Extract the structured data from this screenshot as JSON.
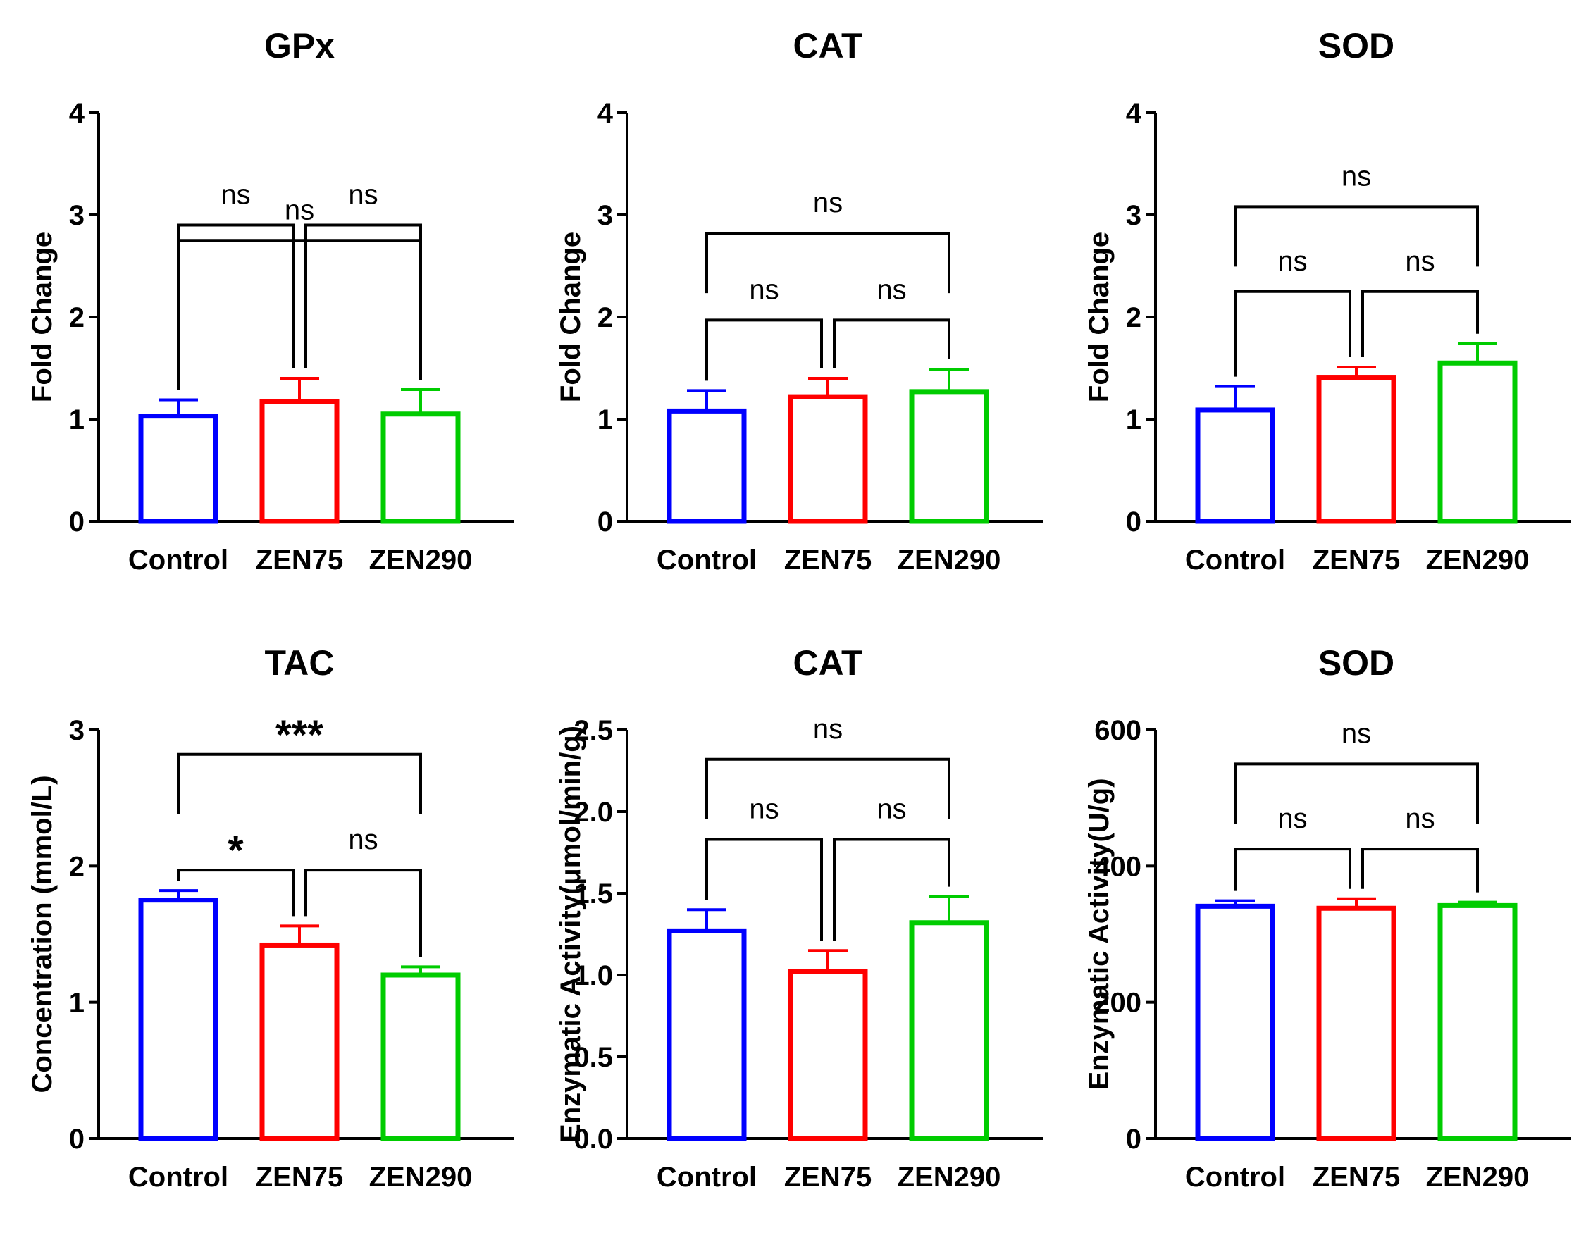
{
  "figure_colors": {
    "Control": "#0000ff",
    "ZEN75": "#ff0000",
    "ZEN290": "#00cc00"
  },
  "chart_data": [
    {
      "type": "bar",
      "title": "GPx",
      "ylabel": "Fold Change",
      "xlabel": "",
      "ylim": [
        0,
        4
      ],
      "yticks": [
        0,
        1,
        2,
        3,
        4
      ],
      "tick_labels": [
        "0",
        "1",
        "2",
        "3",
        "4"
      ],
      "categories": [
        "Control",
        "ZEN75",
        "ZEN290"
      ],
      "values": [
        1.03,
        1.17,
        1.05
      ],
      "errors": [
        0.16,
        0.23,
        0.24
      ],
      "comparisons": [
        {
          "groups": [
            "Control",
            "ZEN75"
          ],
          "label": "ns",
          "level": 2.9
        },
        {
          "groups": [
            "ZEN75",
            "ZEN290"
          ],
          "label": "ns",
          "level": 2.9
        },
        {
          "groups": [
            "Control",
            "ZEN290"
          ],
          "label": "ns",
          "level": 2.75
        }
      ]
    },
    {
      "type": "bar",
      "title": "CAT",
      "ylabel": "Fold Change",
      "xlabel": "",
      "ylim": [
        0,
        4
      ],
      "yticks": [
        0,
        1,
        2,
        3,
        4
      ],
      "tick_labels": [
        "0",
        "1",
        "2",
        "3",
        "4"
      ],
      "categories": [
        "Control",
        "ZEN75",
        "ZEN290"
      ],
      "values": [
        1.08,
        1.22,
        1.27
      ],
      "errors": [
        0.2,
        0.18,
        0.22
      ],
      "comparisons": [
        {
          "groups": [
            "Control",
            "ZEN75"
          ],
          "label": "ns",
          "level": 1.97
        },
        {
          "groups": [
            "ZEN75",
            "ZEN290"
          ],
          "label": "ns",
          "level": 1.97
        },
        {
          "groups": [
            "Control",
            "ZEN290"
          ],
          "label": "ns",
          "level": 2.82
        }
      ]
    },
    {
      "type": "bar",
      "title": "SOD",
      "ylabel": "Fold Change",
      "xlabel": "",
      "ylim": [
        0,
        4
      ],
      "yticks": [
        0,
        1,
        2,
        3,
        4
      ],
      "tick_labels": [
        "0",
        "1",
        "2",
        "3",
        "4"
      ],
      "categories": [
        "Control",
        "ZEN75",
        "ZEN290"
      ],
      "values": [
        1.09,
        1.41,
        1.55
      ],
      "errors": [
        0.23,
        0.1,
        0.19
      ],
      "comparisons": [
        {
          "groups": [
            "Control",
            "ZEN75"
          ],
          "label": "ns",
          "level": 2.25
        },
        {
          "groups": [
            "ZEN75",
            "ZEN290"
          ],
          "label": "ns",
          "level": 2.25
        },
        {
          "groups": [
            "Control",
            "ZEN290"
          ],
          "label": "ns",
          "level": 3.08
        }
      ]
    },
    {
      "type": "bar",
      "title": "TAC",
      "ylabel": "Concentration (mmol/L)",
      "xlabel": "",
      "ylim": [
        0,
        3
      ],
      "yticks": [
        0,
        1,
        2,
        3
      ],
      "tick_labels": [
        "0",
        "1",
        "2",
        "3"
      ],
      "categories": [
        "Control",
        "ZEN75",
        "ZEN290"
      ],
      "values": [
        1.75,
        1.42,
        1.2
      ],
      "errors": [
        0.07,
        0.14,
        0.06
      ],
      "comparisons": [
        {
          "groups": [
            "Control",
            "ZEN75"
          ],
          "label": "*",
          "level": 1.97
        },
        {
          "groups": [
            "ZEN75",
            "ZEN290"
          ],
          "label": "ns",
          "level": 1.97
        },
        {
          "groups": [
            "Control",
            "ZEN290"
          ],
          "label": "***",
          "level": 2.82
        }
      ]
    },
    {
      "type": "bar",
      "title": "CAT",
      "ylabel": "Enzymatic Activity(μmol/min/g)",
      "xlabel": "",
      "ylim": [
        0,
        2.5
      ],
      "yticks": [
        0,
        0.5,
        1,
        1.5,
        2,
        2.5
      ],
      "tick_labels": [
        "0.0",
        "0.5",
        "1.0",
        "1.5",
        "2.0",
        "2.5"
      ],
      "categories": [
        "Control",
        "ZEN75",
        "ZEN290"
      ],
      "values": [
        1.27,
        1.02,
        1.32
      ],
      "errors": [
        0.13,
        0.13,
        0.16
      ],
      "comparisons": [
        {
          "groups": [
            "Control",
            "ZEN75"
          ],
          "label": "ns",
          "level": 1.83
        },
        {
          "groups": [
            "ZEN75",
            "ZEN290"
          ],
          "label": "ns",
          "level": 1.83
        },
        {
          "groups": [
            "Control",
            "ZEN290"
          ],
          "label": "ns",
          "level": 2.32
        }
      ]
    },
    {
      "type": "bar",
      "title": "SOD",
      "ylabel": "Enzymatic Activity(U/g)",
      "xlabel": "",
      "ylim": [
        0,
        600
      ],
      "yticks": [
        0,
        200,
        400,
        600
      ],
      "tick_labels": [
        "0",
        "200",
        "400",
        "600"
      ],
      "categories": [
        "Control",
        "ZEN75",
        "ZEN290"
      ],
      "values": [
        341,
        338,
        342
      ],
      "errors": [
        8,
        14,
        5
      ],
      "comparisons": [
        {
          "groups": [
            "Control",
            "ZEN75"
          ],
          "label": "ns",
          "level": 425
        },
        {
          "groups": [
            "ZEN75",
            "ZEN290"
          ],
          "label": "ns",
          "level": 425
        },
        {
          "groups": [
            "Control",
            "ZEN290"
          ],
          "label": "ns",
          "level": 550
        }
      ]
    }
  ]
}
